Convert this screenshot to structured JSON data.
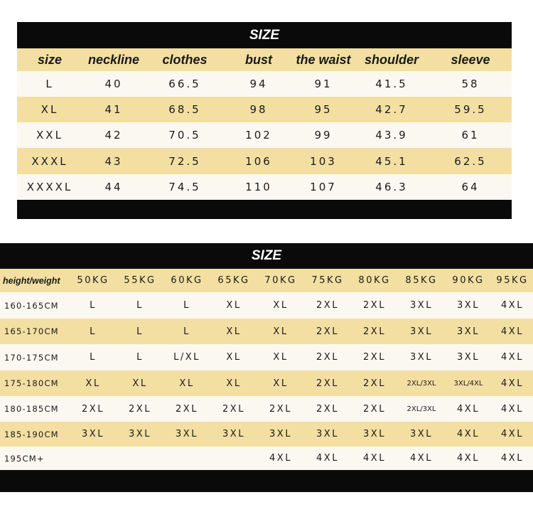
{
  "table1": {
    "title": "SIZE",
    "headers": [
      "size",
      "neckline",
      "clothes",
      "bust",
      "the waist",
      "shoulder",
      "sleeve"
    ],
    "rows": [
      [
        "L",
        "40",
        "66.5",
        "94",
        "91",
        "41.5",
        "58"
      ],
      [
        "XL",
        "41",
        "68.5",
        "98",
        "95",
        "42.7",
        "59.5"
      ],
      [
        "XXL",
        "42",
        "70.5",
        "102",
        "99",
        "43.9",
        "61"
      ],
      [
        "XXXL",
        "43",
        "72.5",
        "106",
        "103",
        "45.1",
        "62.5"
      ],
      [
        "XXXXL",
        "44",
        "74.5",
        "110",
        "107",
        "46.3",
        "64"
      ]
    ]
  },
  "table2": {
    "title": "SIZE",
    "headers": [
      "height/weight",
      "50KG",
      "55KG",
      "60KG",
      "65KG",
      "70KG",
      "75KG",
      "80KG",
      "85KG",
      "90KG",
      "95KG"
    ],
    "rows": [
      [
        "160-165CM",
        "L",
        "L",
        "L",
        "XL",
        "XL",
        "2XL",
        "2XL",
        "3XL",
        "3XL",
        "4XL"
      ],
      [
        "165-170CM",
        "L",
        "L",
        "L",
        "XL",
        "XL",
        "2XL",
        "2XL",
        "3XL",
        "3XL",
        "4XL"
      ],
      [
        "170-175CM",
        "L",
        "L",
        "L/XL",
        "XL",
        "XL",
        "2XL",
        "2XL",
        "3XL",
        "3XL",
        "4XL"
      ],
      [
        "175-180CM",
        "XL",
        "XL",
        "XL",
        "XL",
        "XL",
        "2XL",
        "2XL",
        "2XL/3XL",
        "3XL/4XL",
        "4XL"
      ],
      [
        "180-185CM",
        "2XL",
        "2XL",
        "2XL",
        "2XL",
        "2XL",
        "2XL",
        "2XL",
        "2XL/3XL",
        "4XL",
        "4XL"
      ],
      [
        "185-190CM",
        "3XL",
        "3XL",
        "3XL",
        "3XL",
        "3XL",
        "3XL",
        "3XL",
        "3XL",
        "4XL",
        "4XL"
      ],
      [
        "195CM+",
        "",
        "",
        "",
        "",
        "4XL",
        "4XL",
        "4XL",
        "4XL",
        "4XL",
        "4XL"
      ]
    ]
  },
  "colors": {
    "header_bar": "#0a0a0a",
    "gold_row": "#f3dfa2",
    "light_row": "#fbf8f1"
  }
}
